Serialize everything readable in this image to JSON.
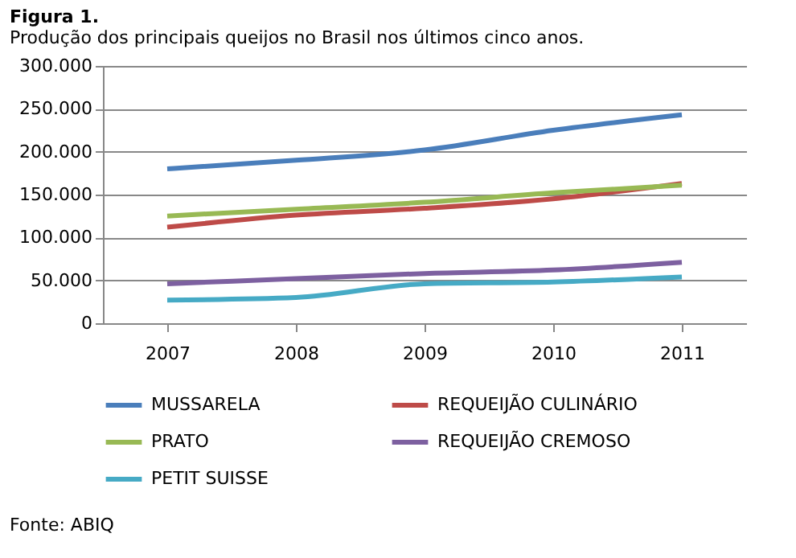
{
  "chart_data": {
    "type": "line",
    "title": "Figura 1.",
    "subtitle": "Produção dos principais queijos no Brasil nos últimos cinco anos.",
    "annotations": [
      "Fonte: ABIQ"
    ],
    "categories": [
      "2007",
      "2008",
      "2009",
      "2010",
      "2011"
    ],
    "series": [
      {
        "name": "MUSSARELA",
        "color": "#4a7ebb",
        "values": [
          180000,
          190000,
          202000,
          225000,
          243000
        ]
      },
      {
        "name": "REQUEIJÃO CULINÁRIO",
        "color": "#be4b48",
        "values": [
          112000,
          126000,
          134000,
          145000,
          163000
        ]
      },
      {
        "name": "PRATO",
        "color": "#98b954",
        "values": [
          125000,
          133000,
          141000,
          152000,
          161000
        ]
      },
      {
        "name": "REQUEIJÃO CREMOSO",
        "color": "#7d60a0",
        "values": [
          46000,
          52000,
          58000,
          62000,
          71000
        ]
      },
      {
        "name": "PETIT SUISSE",
        "color": "#46aac5",
        "values": [
          27000,
          30000,
          46000,
          48000,
          54000
        ]
      }
    ],
    "ylim": [
      0,
      300000
    ],
    "yticks": [
      {
        "value": 0,
        "label": "0"
      },
      {
        "value": 50000,
        "label": "50.000"
      },
      {
        "value": 100000,
        "label": "100.000"
      },
      {
        "value": 150000,
        "label": "150.000"
      },
      {
        "value": 200000,
        "label": "200.000"
      },
      {
        "value": 250000,
        "label": "250.000"
      },
      {
        "value": 300000,
        "label": "300.000"
      }
    ],
    "grid": "y",
    "legend": "bottom",
    "marker": "none",
    "line_style": "solid"
  }
}
